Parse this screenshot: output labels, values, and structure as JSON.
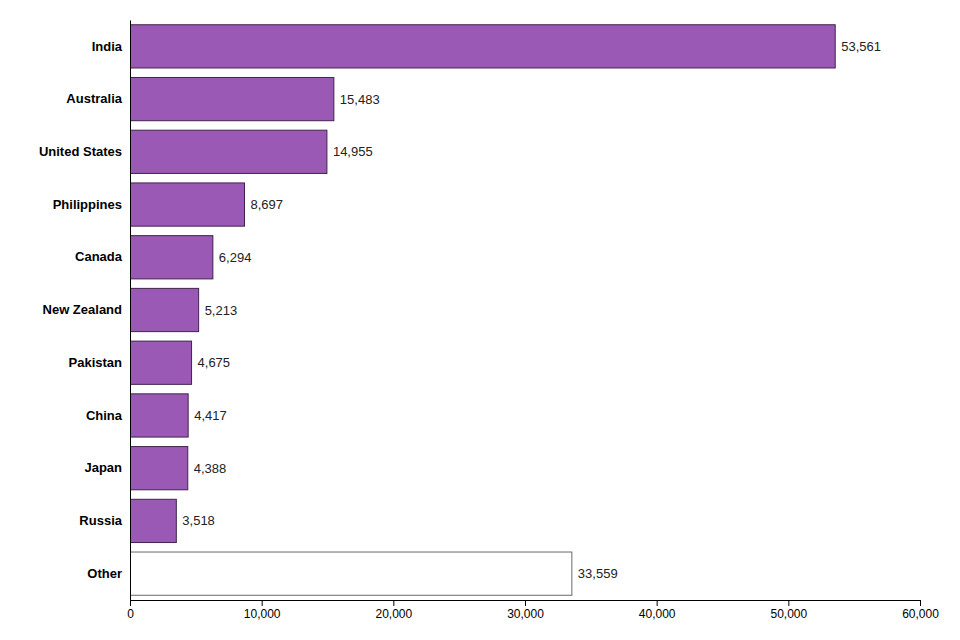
{
  "chart_data": {
    "type": "bar",
    "orientation": "horizontal",
    "categories": [
      "India",
      "Australia",
      "United States",
      "Philippines",
      "Canada",
      "New Zealand",
      "Pakistan",
      "China",
      "Japan",
      "Russia",
      "Other"
    ],
    "values": [
      53561,
      15483,
      14955,
      8697,
      6294,
      5213,
      4675,
      4417,
      4388,
      3518,
      33559
    ],
    "value_labels": [
      "53,561",
      "15,483",
      "14,955",
      "8,697",
      "6,294",
      "5,213",
      "4,675",
      "4,417",
      "4,388",
      "3,518",
      "33,559"
    ],
    "data_labels": true,
    "colors": [
      "#9b59b6",
      "#9b59b6",
      "#9b59b6",
      "#9b59b6",
      "#9b59b6",
      "#9b59b6",
      "#9b59b6",
      "#9b59b6",
      "#9b59b6",
      "#9b59b6",
      "#ffffff"
    ],
    "xlim": [
      0,
      60000
    ],
    "xticks": [
      0,
      {
        "value": 10000,
        "label": "10,000"
      },
      {
        "value": 20000,
        "label": "20,000"
      },
      {
        "value": 30000,
        "label": "30,000"
      },
      {
        "value": 40000,
        "label": "40,000"
      },
      {
        "value": 50000,
        "label": "50,000"
      },
      {
        "value": 60000,
        "label": "60,000"
      }
    ],
    "grid": false
  }
}
